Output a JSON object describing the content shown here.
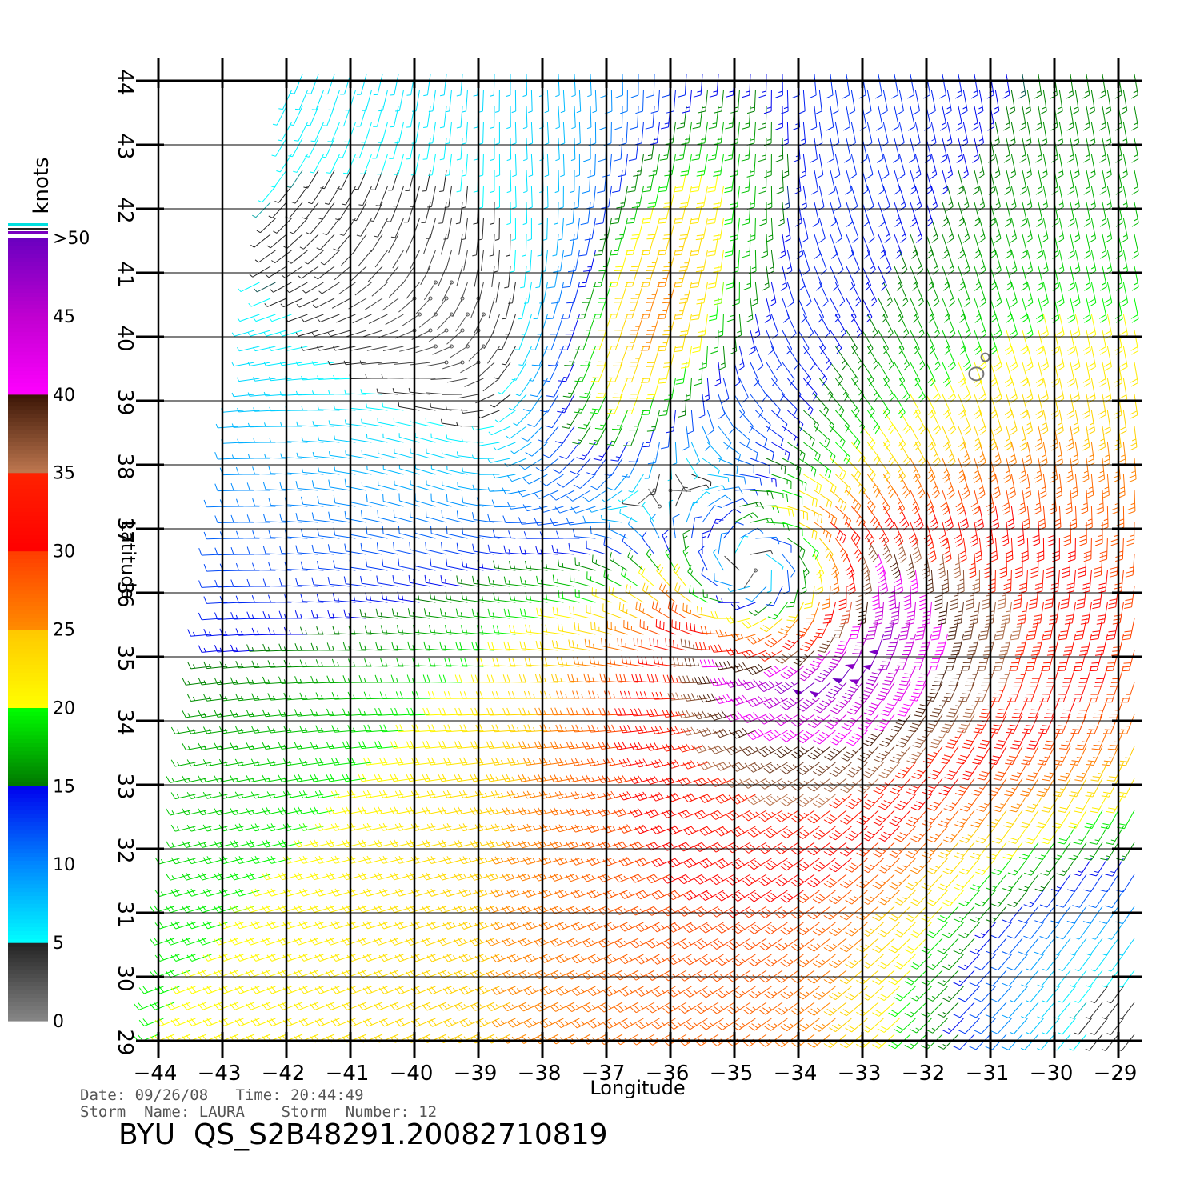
{
  "chart_data": {
    "type": "wind-barb",
    "xlabel": "Longitude",
    "ylabel": "Latitude",
    "xlim": [
      -44,
      -29
    ],
    "ylim": [
      29,
      44
    ],
    "x_ticks": [
      "-44",
      "-43",
      "-42",
      "-41",
      "-40",
      "-39",
      "-38",
      "-37",
      "-36",
      "-35",
      "-34",
      "-33",
      "-32",
      "-31",
      "-30",
      "-29"
    ],
    "y_ticks": [
      "29",
      "30",
      "31",
      "32",
      "33",
      "34",
      "35",
      "36",
      "37",
      "38",
      "39",
      "40",
      "41",
      "42",
      "43",
      "44"
    ],
    "grid": true,
    "colorbar": {
      "unit_label": "knots",
      "labels": [
        "0",
        "5",
        "10",
        "15",
        "20",
        "25",
        "30",
        "35",
        "40",
        "45",
        ">50"
      ],
      "placement": "left"
    },
    "storm_center": {
      "lon": -34.2,
      "lat": 35.9
    }
  },
  "footer": {
    "line1": "Date: 09/26/08   Time: 20:44:49",
    "line2": "Storm  Name: LAURA    Storm  Number: 12",
    "title": "BYU  QS_S2B48291.20082710819"
  }
}
